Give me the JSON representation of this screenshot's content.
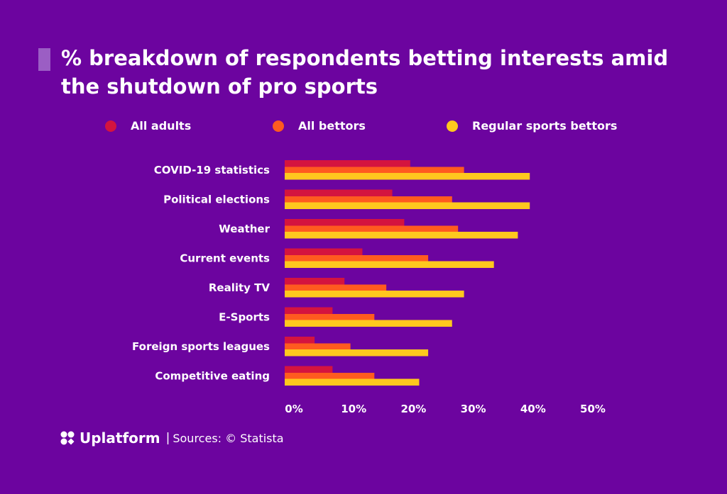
{
  "header": {
    "title": "% breakdown of respondents betting interests amid the shutdown of pro sports"
  },
  "legend": [
    {
      "label": "All adults",
      "color": "#d4143f"
    },
    {
      "label": "All bettors",
      "color": "#ff5b1f"
    },
    {
      "label": "Regular sports bettors",
      "color": "#ffc81e"
    }
  ],
  "footer": {
    "brand": "Uplatform",
    "separator": "|",
    "source": "Sources: © Statista"
  },
  "chart_data": {
    "type": "bar",
    "orientation": "horizontal",
    "title": "% breakdown of respondents betting interests amid the shutdown of pro sports",
    "categories": [
      "COVID-19 statistics",
      "Political elections",
      "Weather",
      "Current events",
      "Reality TV",
      "E-Sports",
      "Foreign sports leagues",
      "Competitive eating"
    ],
    "series": [
      {
        "name": "All adults",
        "color": "#d4143f",
        "values": [
          21,
          18,
          20,
          13,
          10,
          8,
          5,
          8
        ]
      },
      {
        "name": "All bettors",
        "color": "#ff5b1f",
        "values": [
          30,
          28,
          29,
          24,
          17,
          15,
          11,
          15
        ]
      },
      {
        "name": "Regular sports bettors",
        "color": "#ffc81e",
        "values": [
          41,
          41,
          39,
          35,
          30,
          28,
          24,
          22.5
        ]
      }
    ],
    "x_ticks": [
      "0%",
      "10%",
      "20%",
      "30%",
      "40%",
      "50%"
    ],
    "xlim": [
      0,
      50
    ],
    "xlabel": "",
    "ylabel": "",
    "grid": false,
    "legend_position": "top"
  }
}
